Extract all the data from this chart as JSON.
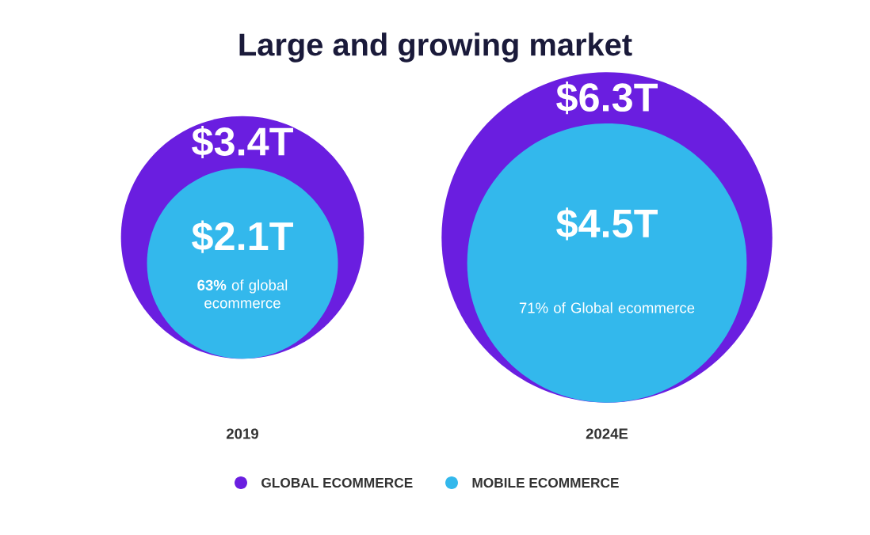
{
  "chart_data": {
    "type": "other",
    "title": "Large and growing market",
    "categories": [
      "2019",
      "2024E"
    ],
    "series": [
      {
        "name": "GLOBAL ECOMMERCE",
        "color": "#6a1ee0",
        "values": [
          3.4,
          6.3
        ],
        "value_labels": [
          "$3.4T",
          "$6.3T"
        ]
      },
      {
        "name": "MOBILE ECOMMERCE",
        "color": "#33b8ec",
        "values": [
          2.1,
          4.5
        ],
        "value_labels": [
          "$2.1T",
          "$4.5T"
        ]
      }
    ],
    "annotations": [
      "**63%** of global ecommerce",
      "71% of Global ecommerce"
    ],
    "legend": "bottom"
  }
}
